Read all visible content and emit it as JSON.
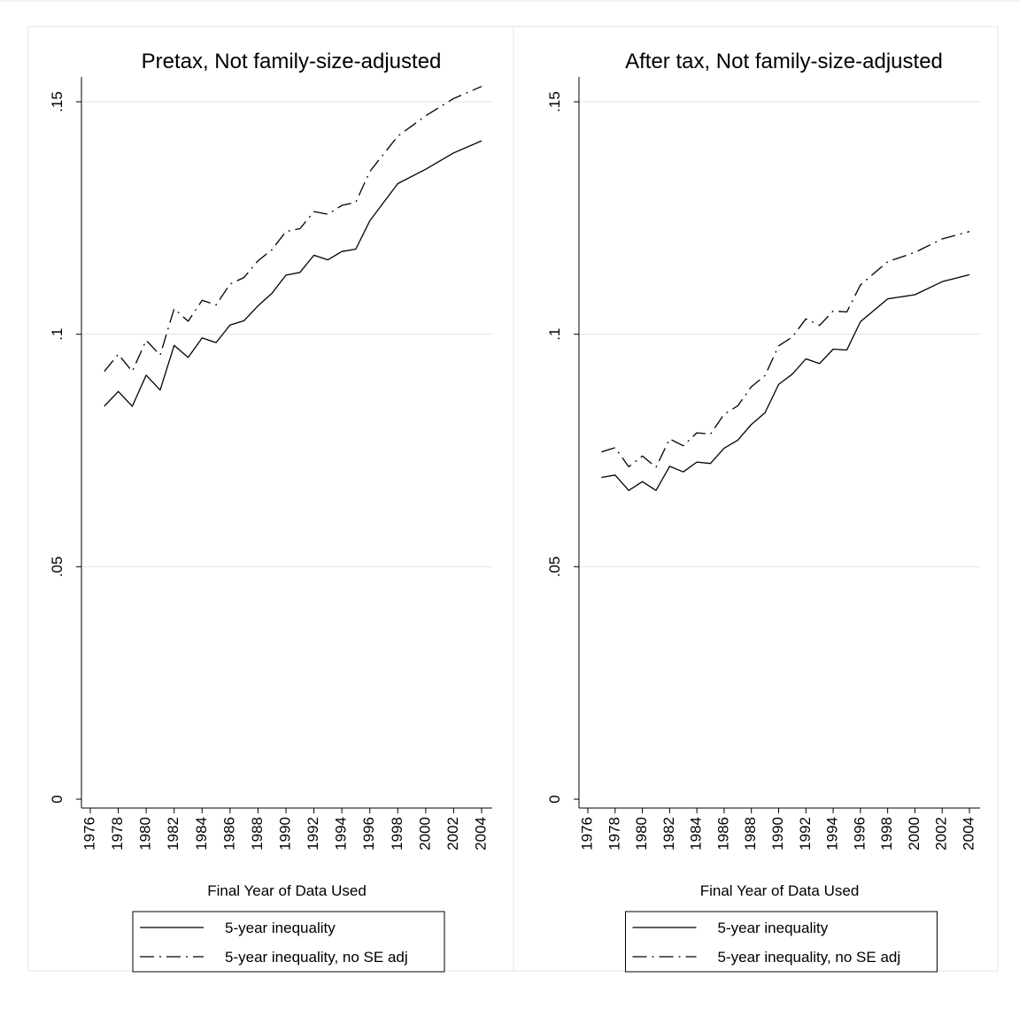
{
  "chart_data": [
    {
      "type": "line",
      "title": "Pretax, Not family-size-adjusted",
      "xlabel": "Final Year of Data Used",
      "ylabel": "",
      "ylim": [
        0,
        0.15
      ],
      "xlim": [
        1976,
        2004
      ],
      "yticks": [
        0,
        0.05,
        0.1,
        0.15
      ],
      "ytick_labels": [
        "0",
        ".05",
        ".1",
        ".15"
      ],
      "xticks": [
        1976,
        1978,
        1980,
        1982,
        1984,
        1986,
        1988,
        1990,
        1992,
        1994,
        1996,
        1998,
        2000,
        2002,
        2004
      ],
      "grid": true,
      "legend_position": "bottom",
      "x": [
        1977,
        1978,
        1979,
        1980,
        1981,
        1982,
        1983,
        1984,
        1985,
        1986,
        1987,
        1988,
        1989,
        1990,
        1991,
        1992,
        1993,
        1994,
        1995,
        1996,
        1998,
        2000,
        2002,
        2004
      ],
      "series": [
        {
          "name": "5-year inequality",
          "style": "solid",
          "values": [
            0.0845,
            0.0877,
            0.0845,
            0.0912,
            0.088,
            0.0976,
            0.095,
            0.0992,
            0.0982,
            0.102,
            0.1029,
            0.1061,
            0.1088,
            0.1127,
            0.1133,
            0.117,
            0.116,
            0.1178,
            0.1183,
            0.1244,
            0.1324,
            0.1355,
            0.139,
            0.1416
          ]
        },
        {
          "name": "5-year inequality, no SE adj",
          "style": "dash",
          "values": [
            0.092,
            0.0957,
            0.092,
            0.0987,
            0.0955,
            0.1055,
            0.1028,
            0.1073,
            0.1063,
            0.1108,
            0.1122,
            0.1158,
            0.1182,
            0.1221,
            0.1227,
            0.1264,
            0.1258,
            0.1277,
            0.1284,
            0.135,
            0.1426,
            0.147,
            0.1507,
            0.1533
          ]
        }
      ]
    },
    {
      "type": "line",
      "title": "After tax, Not family-size-adjusted",
      "xlabel": "Final Year of Data Used",
      "ylabel": "",
      "ylim": [
        0,
        0.15
      ],
      "xlim": [
        1976,
        2004
      ],
      "yticks": [
        0,
        0.05,
        0.1,
        0.15
      ],
      "ytick_labels": [
        "0",
        ".05",
        ".1",
        ".15"
      ],
      "xticks": [
        1976,
        1978,
        1980,
        1982,
        1984,
        1986,
        1988,
        1990,
        1992,
        1994,
        1996,
        1998,
        2000,
        2002,
        2004
      ],
      "grid": true,
      "legend_position": "bottom",
      "x": [
        1977,
        1978,
        1979,
        1980,
        1981,
        1982,
        1983,
        1984,
        1985,
        1986,
        1987,
        1988,
        1989,
        1990,
        1991,
        1992,
        1993,
        1994,
        1995,
        1996,
        1998,
        2000,
        2002,
        2004
      ],
      "series": [
        {
          "name": "5-year inequality",
          "style": "solid",
          "values": [
            0.0692,
            0.0697,
            0.0664,
            0.0683,
            0.0664,
            0.0716,
            0.0704,
            0.0725,
            0.0722,
            0.0755,
            0.0772,
            0.0806,
            0.0831,
            0.0892,
            0.0914,
            0.0947,
            0.0937,
            0.0968,
            0.0966,
            0.1027,
            0.1076,
            0.1085,
            0.1113,
            0.1128
          ]
        },
        {
          "name": "5-year inequality, no SE adj",
          "style": "dash",
          "values": [
            0.0747,
            0.0756,
            0.0715,
            0.0738,
            0.0714,
            0.0775,
            0.076,
            0.0788,
            0.0785,
            0.0828,
            0.0846,
            0.0887,
            0.0911,
            0.0975,
            0.0994,
            0.1033,
            0.1019,
            0.105,
            0.1048,
            0.1106,
            0.1156,
            0.1176,
            0.1205,
            0.1221
          ]
        }
      ]
    }
  ]
}
